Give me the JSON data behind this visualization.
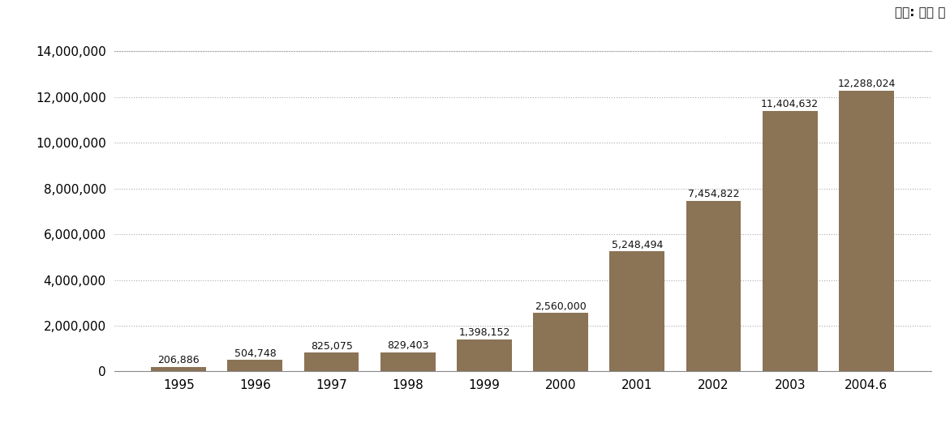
{
  "categories": [
    "1995",
    "1996",
    "1997",
    "1998",
    "1999",
    "2000",
    "2001",
    "2002",
    "2003",
    "2004.6"
  ],
  "values": [
    206886,
    504748,
    825075,
    829403,
    1398152,
    2560000,
    5248494,
    7454822,
    11404632,
    12288024
  ],
  "labels": [
    "206,886",
    "504,748",
    "825,075",
    "829,403",
    "1,398,152",
    "2,560,000",
    "5,248,494",
    "7,454,822",
    "11,404,632",
    "12,288,024"
  ],
  "bar_color": "#8B7355",
  "background_color": "#ffffff",
  "ylim": [
    0,
    14000000
  ],
  "yticks": [
    0,
    2000000,
    4000000,
    6000000,
    8000000,
    10000000,
    12000000,
    14000000
  ],
  "ytick_labels": [
    "0",
    "2,000,000",
    "4,000,000",
    "6,000,000",
    "8,000,000",
    "10,000,000",
    "12,000,000",
    "14,000,000"
  ],
  "unit_label": "단위: 가구 수",
  "grid_color": "#aaaaaa",
  "label_fontsize": 9,
  "tick_fontsize": 11,
  "unit_fontsize": 11
}
